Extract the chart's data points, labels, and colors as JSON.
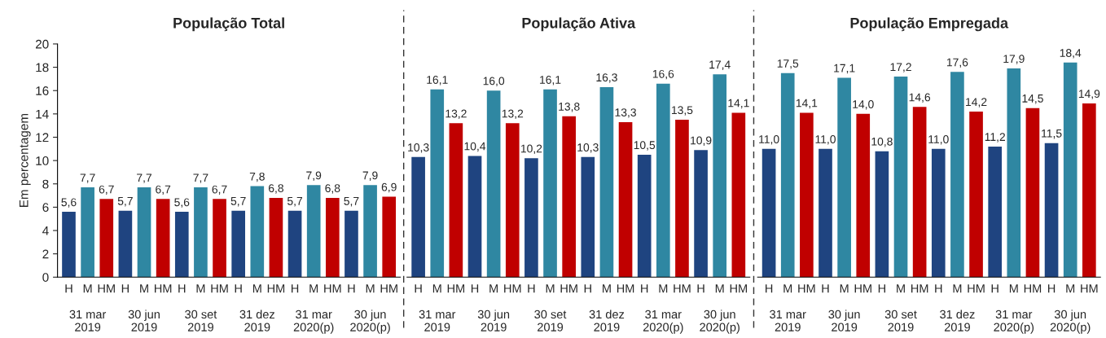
{
  "chart_data": [
    {
      "type": "bar",
      "title": "População Total",
      "ylabel": "Em percentagem",
      "categories": [
        "H",
        "M",
        "HM",
        "H",
        "M",
        "HM",
        "H",
        "M",
        "HM",
        "H",
        "M",
        "HM",
        "H",
        "M",
        "HM",
        "H",
        "M",
        "HM"
      ],
      "values": [
        5.6,
        7.7,
        6.7,
        5.7,
        7.7,
        6.7,
        5.6,
        7.7,
        6.7,
        5.7,
        7.8,
        6.8,
        5.7,
        7.9,
        6.8,
        5.7,
        7.9,
        6.9
      ],
      "value_labels": [
        "5,6",
        "7,7",
        "6,7",
        "5,7",
        "7,7",
        "6,7",
        "5,6",
        "7,7",
        "6,7",
        "5,7",
        "7,8",
        "6,8",
        "5,7",
        "7,9",
        "6,8",
        "5,7",
        "7,9",
        "6,9"
      ],
      "colors": [
        "#1f4480",
        "#2f87a2",
        "#c00000",
        "#1f4480",
        "#2f87a2",
        "#c00000",
        "#1f4480",
        "#2f87a2",
        "#c00000",
        "#1f4480",
        "#2f87a2",
        "#c00000",
        "#1f4480",
        "#2f87a2",
        "#c00000",
        "#1f4480",
        "#2f87a2",
        "#c00000"
      ],
      "annotations": [
        "31 mar\n2019",
        "30 jun\n2019",
        "30 set\n2019",
        "31 dez\n2019",
        "31 mar\n2020(p)",
        "30 jun\n2020(p)"
      ],
      "ylim": [
        0,
        20
      ],
      "yticks": [
        0,
        2,
        4,
        6,
        8,
        10,
        12,
        14,
        16,
        18,
        20
      ],
      "grid": false,
      "legend": false
    },
    {
      "type": "bar",
      "title": "População Ativa",
      "categories": [
        "H",
        "M",
        "HM",
        "H",
        "M",
        "HM",
        "H",
        "M",
        "HM",
        "H",
        "M",
        "HM",
        "H",
        "M",
        "HM",
        "H",
        "M",
        "HM"
      ],
      "values": [
        10.3,
        16.1,
        13.2,
        10.4,
        16.0,
        13.2,
        10.2,
        16.1,
        13.8,
        10.3,
        16.3,
        13.3,
        10.5,
        16.6,
        13.5,
        10.9,
        17.4,
        14.1
      ],
      "value_labels": [
        "10,3",
        "16,1",
        "13,2",
        "10,4",
        "16,0",
        "13,2",
        "10,2",
        "16,1",
        "13,8",
        "10,3",
        "16,3",
        "13,3",
        "10,5",
        "16,6",
        "13,5",
        "10,9",
        "17,4",
        "14,1"
      ],
      "colors": [
        "#1f4480",
        "#2f87a2",
        "#c00000",
        "#1f4480",
        "#2f87a2",
        "#c00000",
        "#1f4480",
        "#2f87a2",
        "#c00000",
        "#1f4480",
        "#2f87a2",
        "#c00000",
        "#1f4480",
        "#2f87a2",
        "#c00000",
        "#1f4480",
        "#2f87a2",
        "#c00000"
      ],
      "annotations": [
        "31 mar\n2019",
        "30 jun\n2019",
        "30 set\n2019",
        "31 dez\n2019",
        "31 mar\n2020(p)",
        "30 jun\n2020(p)"
      ],
      "ylim": [
        0,
        20
      ],
      "yticks": [
        0,
        2,
        4,
        6,
        8,
        10,
        12,
        14,
        16,
        18,
        20
      ],
      "tick_labels": "x",
      "grid": false,
      "legend": false
    },
    {
      "type": "bar",
      "title": "População Empregada",
      "categories": [
        "H",
        "M",
        "HM",
        "H",
        "M",
        "HM",
        "H",
        "M",
        "HM",
        "H",
        "M",
        "HM",
        "H",
        "M",
        "HM",
        "H",
        "M",
        "HM"
      ],
      "values": [
        11.0,
        17.5,
        14.1,
        11.0,
        17.1,
        14.0,
        10.8,
        17.2,
        14.6,
        11.0,
        17.6,
        14.2,
        11.2,
        17.9,
        14.5,
        11.5,
        18.4,
        14.9
      ],
      "value_labels": [
        "11,0",
        "17,5",
        "14,1",
        "11,0",
        "17,1",
        "14,0",
        "10,8",
        "17,2",
        "14,6",
        "11,0",
        "17,6",
        "14,2",
        "11,2",
        "17,9",
        "14,5",
        "11,5",
        "18,4",
        "14,9"
      ],
      "colors": [
        "#1f4480",
        "#2f87a2",
        "#c00000",
        "#1f4480",
        "#2f87a2",
        "#c00000",
        "#1f4480",
        "#2f87a2",
        "#c00000",
        "#1f4480",
        "#2f87a2",
        "#c00000",
        "#1f4480",
        "#2f87a2",
        "#c00000",
        "#1f4480",
        "#2f87a2",
        "#c00000"
      ],
      "annotations": [
        "31 mar\n2019",
        "30 jun\n2019",
        "30 set\n2019",
        "31 dez\n2019",
        "31 mar\n2020(p)",
        "30 jun\n2020(p)"
      ],
      "ylim": [
        0,
        20
      ],
      "yticks": [
        0,
        2,
        4,
        6,
        8,
        10,
        12,
        14,
        16,
        18,
        20
      ],
      "tick_labels": "x",
      "grid": false,
      "legend": false
    }
  ]
}
